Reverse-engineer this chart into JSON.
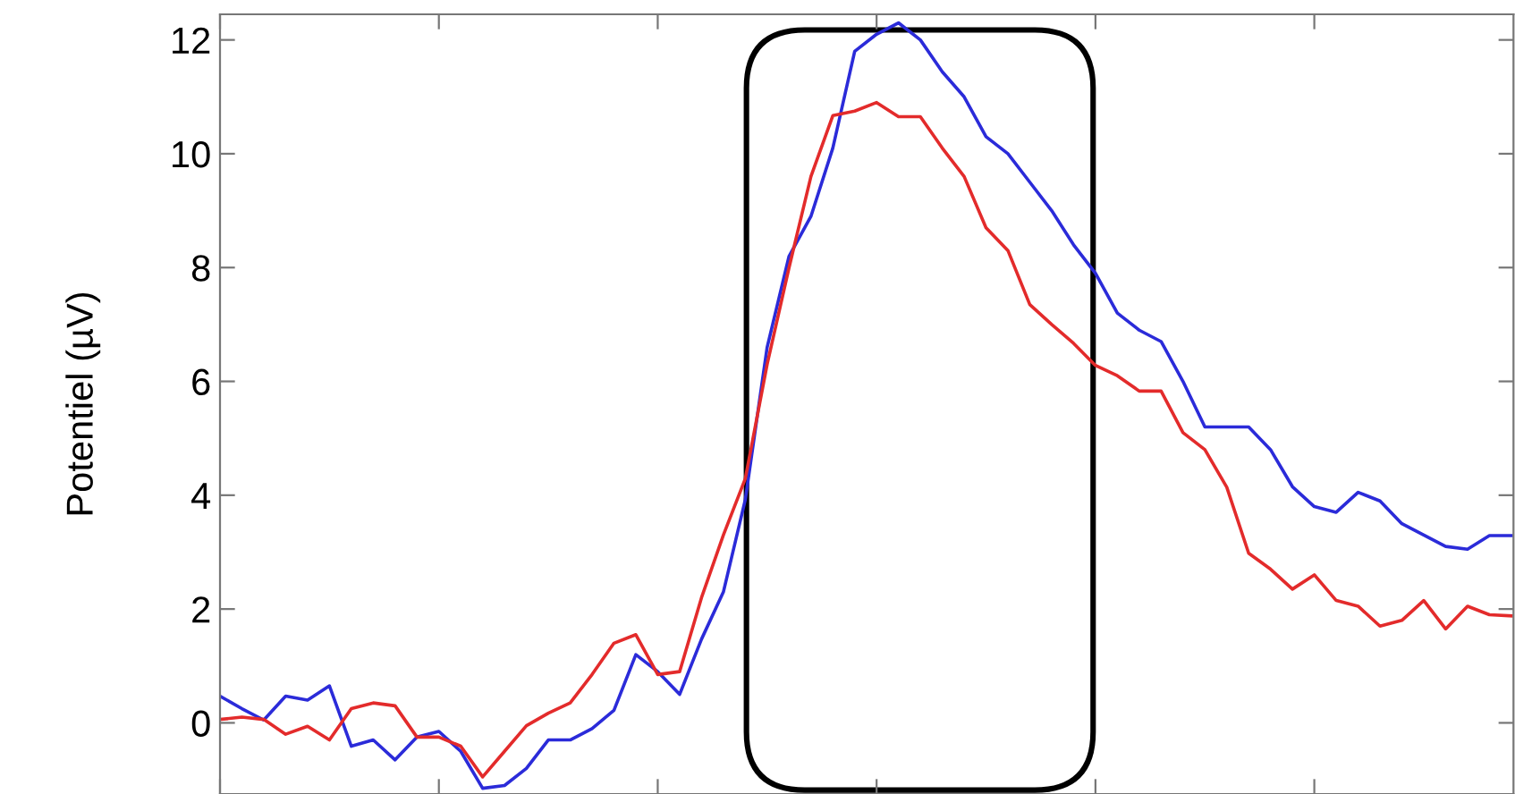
{
  "chart_data": {
    "type": "line",
    "ylabel": "Potentiel (µV)",
    "categories": [
      null,
      null,
      null,
      null,
      null,
      null,
      null,
      null,
      null,
      null,
      null,
      null,
      null,
      null,
      null,
      null,
      null,
      null,
      null,
      null,
      null,
      null,
      null,
      null,
      null,
      null,
      null,
      null,
      null,
      null,
      null,
      null,
      null,
      null,
      null,
      null,
      null,
      null,
      null,
      null,
      null,
      null,
      null,
      null,
      null,
      null,
      null,
      null,
      null,
      null,
      null,
      null,
      null,
      null,
      null,
      null,
      null,
      null,
      null,
      null
    ],
    "ylim": [
      -1.25,
      12.45
    ],
    "yticks": [
      0,
      2,
      4,
      6,
      8,
      10,
      12
    ],
    "tick_labels": "y",
    "grid": false,
    "legend": false,
    "line_style": "solid",
    "marker": "none",
    "series": [
      {
        "color": "#2b2bd9",
        "values": [
          0.47,
          0.25,
          0.05,
          0.47,
          0.4,
          0.65,
          -0.41,
          -0.3,
          -0.65,
          -0.25,
          -0.15,
          -0.5,
          -1.15,
          -1.1,
          -0.8,
          -0.3,
          -0.3,
          -0.1,
          0.22,
          1.2,
          0.9,
          0.5,
          1.47,
          2.3,
          3.92,
          6.6,
          8.2,
          8.9,
          10.1,
          11.8,
          12.1,
          12.3,
          12.0,
          11.44,
          11.0,
          10.3,
          10.0,
          9.5,
          9.0,
          8.4,
          7.9,
          7.2,
          6.9,
          6.7,
          6.0,
          5.2,
          5.2,
          5.2,
          4.8,
          4.15,
          3.8,
          3.7,
          4.05,
          3.9,
          3.5,
          3.3,
          3.1,
          3.05,
          3.29,
          3.29
        ]
      },
      {
        "color": "#e32b2b",
        "values": [
          0.06,
          0.1,
          0.06,
          -0.2,
          -0.06,
          -0.3,
          0.25,
          0.35,
          0.3,
          -0.25,
          -0.25,
          -0.41,
          -0.95,
          -0.5,
          -0.05,
          0.17,
          0.35,
          0.85,
          1.4,
          1.55,
          0.85,
          0.9,
          2.2,
          3.3,
          4.29,
          6.3,
          8.0,
          9.6,
          10.67,
          10.75,
          10.9,
          10.65,
          10.65,
          10.1,
          9.6,
          8.7,
          8.3,
          7.35,
          7.0,
          6.67,
          6.28,
          6.1,
          5.83,
          5.83,
          5.1,
          4.8,
          4.14,
          2.98,
          2.7,
          2.35,
          2.6,
          2.15,
          2.05,
          1.7,
          1.8,
          2.15,
          1.65,
          2.05,
          1.9,
          1.88
        ]
      }
    ]
  }
}
